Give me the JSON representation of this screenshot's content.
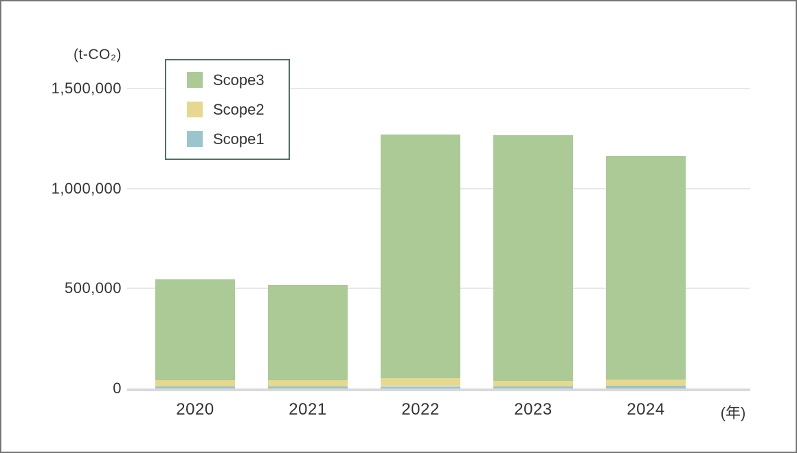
{
  "chart_data": {
    "type": "bar",
    "stacked": true,
    "title": "",
    "ylabel": "(t-CO₂)",
    "xlabel": "(年)",
    "categories": [
      "2020",
      "2021",
      "2022",
      "2023",
      "2024"
    ],
    "series": [
      {
        "name": "Scope1",
        "color": "#9ac4ce",
        "values": [
          12000,
          12000,
          12000,
          12000,
          13000
        ]
      },
      {
        "name": "Scope2",
        "color": "#e7d88f",
        "values": [
          28000,
          28000,
          38000,
          25000,
          30000
        ]
      },
      {
        "name": "Scope3",
        "color": "#abca96",
        "values": [
          505000,
          480000,
          1220000,
          1228000,
          1122000
        ]
      }
    ],
    "series_stack_order": "bottom-to-top",
    "totals": [
      545000,
      520000,
      1270000,
      1265000,
      1165000
    ],
    "ylim": [
      0,
      1500000
    ],
    "y_tick_values": [
      0,
      500000,
      1000000,
      1500000
    ],
    "y_tick_labels": [
      "0",
      "500,000",
      "1,000,000",
      "1,500,000"
    ],
    "grid": true,
    "legend_position": "top-left"
  },
  "legend": {
    "border_color": "#4e7260",
    "items": [
      {
        "label": "Scope3",
        "color": "#abca96"
      },
      {
        "label": "Scope2",
        "color": "#e7d88f"
      },
      {
        "label": "Scope1",
        "color": "#9ac4ce"
      }
    ]
  },
  "colors": {
    "gridline": "#e8e8e8",
    "baseline": "#d9d9d9",
    "text": "#333333",
    "frame_border": "#757575",
    "background": "#ffffff"
  }
}
